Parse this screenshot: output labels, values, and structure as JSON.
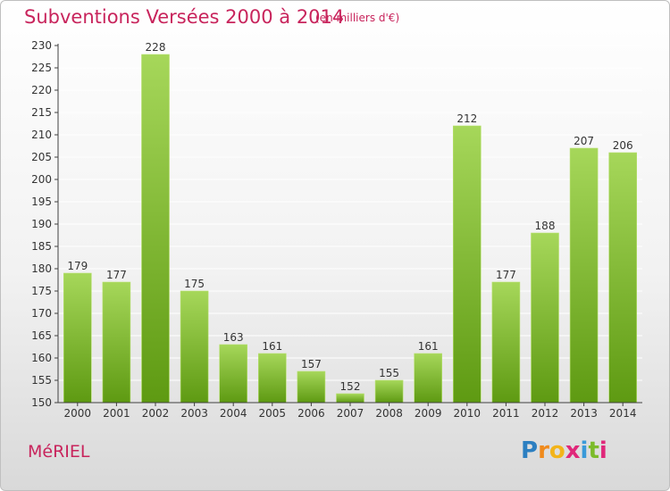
{
  "header": {
    "title": "Subventions Versées 2000 à 2014",
    "subtitle": "(en milliers d'€)"
  },
  "footer": {
    "commune": "MéRIEL",
    "logo": {
      "letters": [
        "P",
        "r",
        "o",
        "x",
        "i",
        "t",
        "i"
      ],
      "colors": [
        "#2c7fc1",
        "#f08a1c",
        "#f3b41a",
        "#e0287a",
        "#3a9ad9",
        "#7cbb2a",
        "#e0287a"
      ]
    }
  },
  "chart_data": {
    "type": "bar",
    "categories": [
      "2000",
      "2001",
      "2002",
      "2003",
      "2004",
      "2005",
      "2006",
      "2007",
      "2008",
      "2009",
      "2010",
      "2011",
      "2012",
      "2013",
      "2014"
    ],
    "values": [
      179,
      177,
      228,
      175,
      163,
      161,
      157,
      152,
      155,
      161,
      212,
      177,
      188,
      207,
      206
    ],
    "ylim": [
      150,
      230
    ],
    "yticks": [
      150,
      155,
      160,
      165,
      170,
      175,
      180,
      185,
      190,
      195,
      200,
      205,
      210,
      215,
      220,
      225,
      230
    ],
    "grid": true,
    "colors": {
      "bar_top": "#a6d75a",
      "bar_bottom": "#5e9a12",
      "grid": "#ffffff",
      "axis": "#404040",
      "text": "#333333"
    }
  }
}
